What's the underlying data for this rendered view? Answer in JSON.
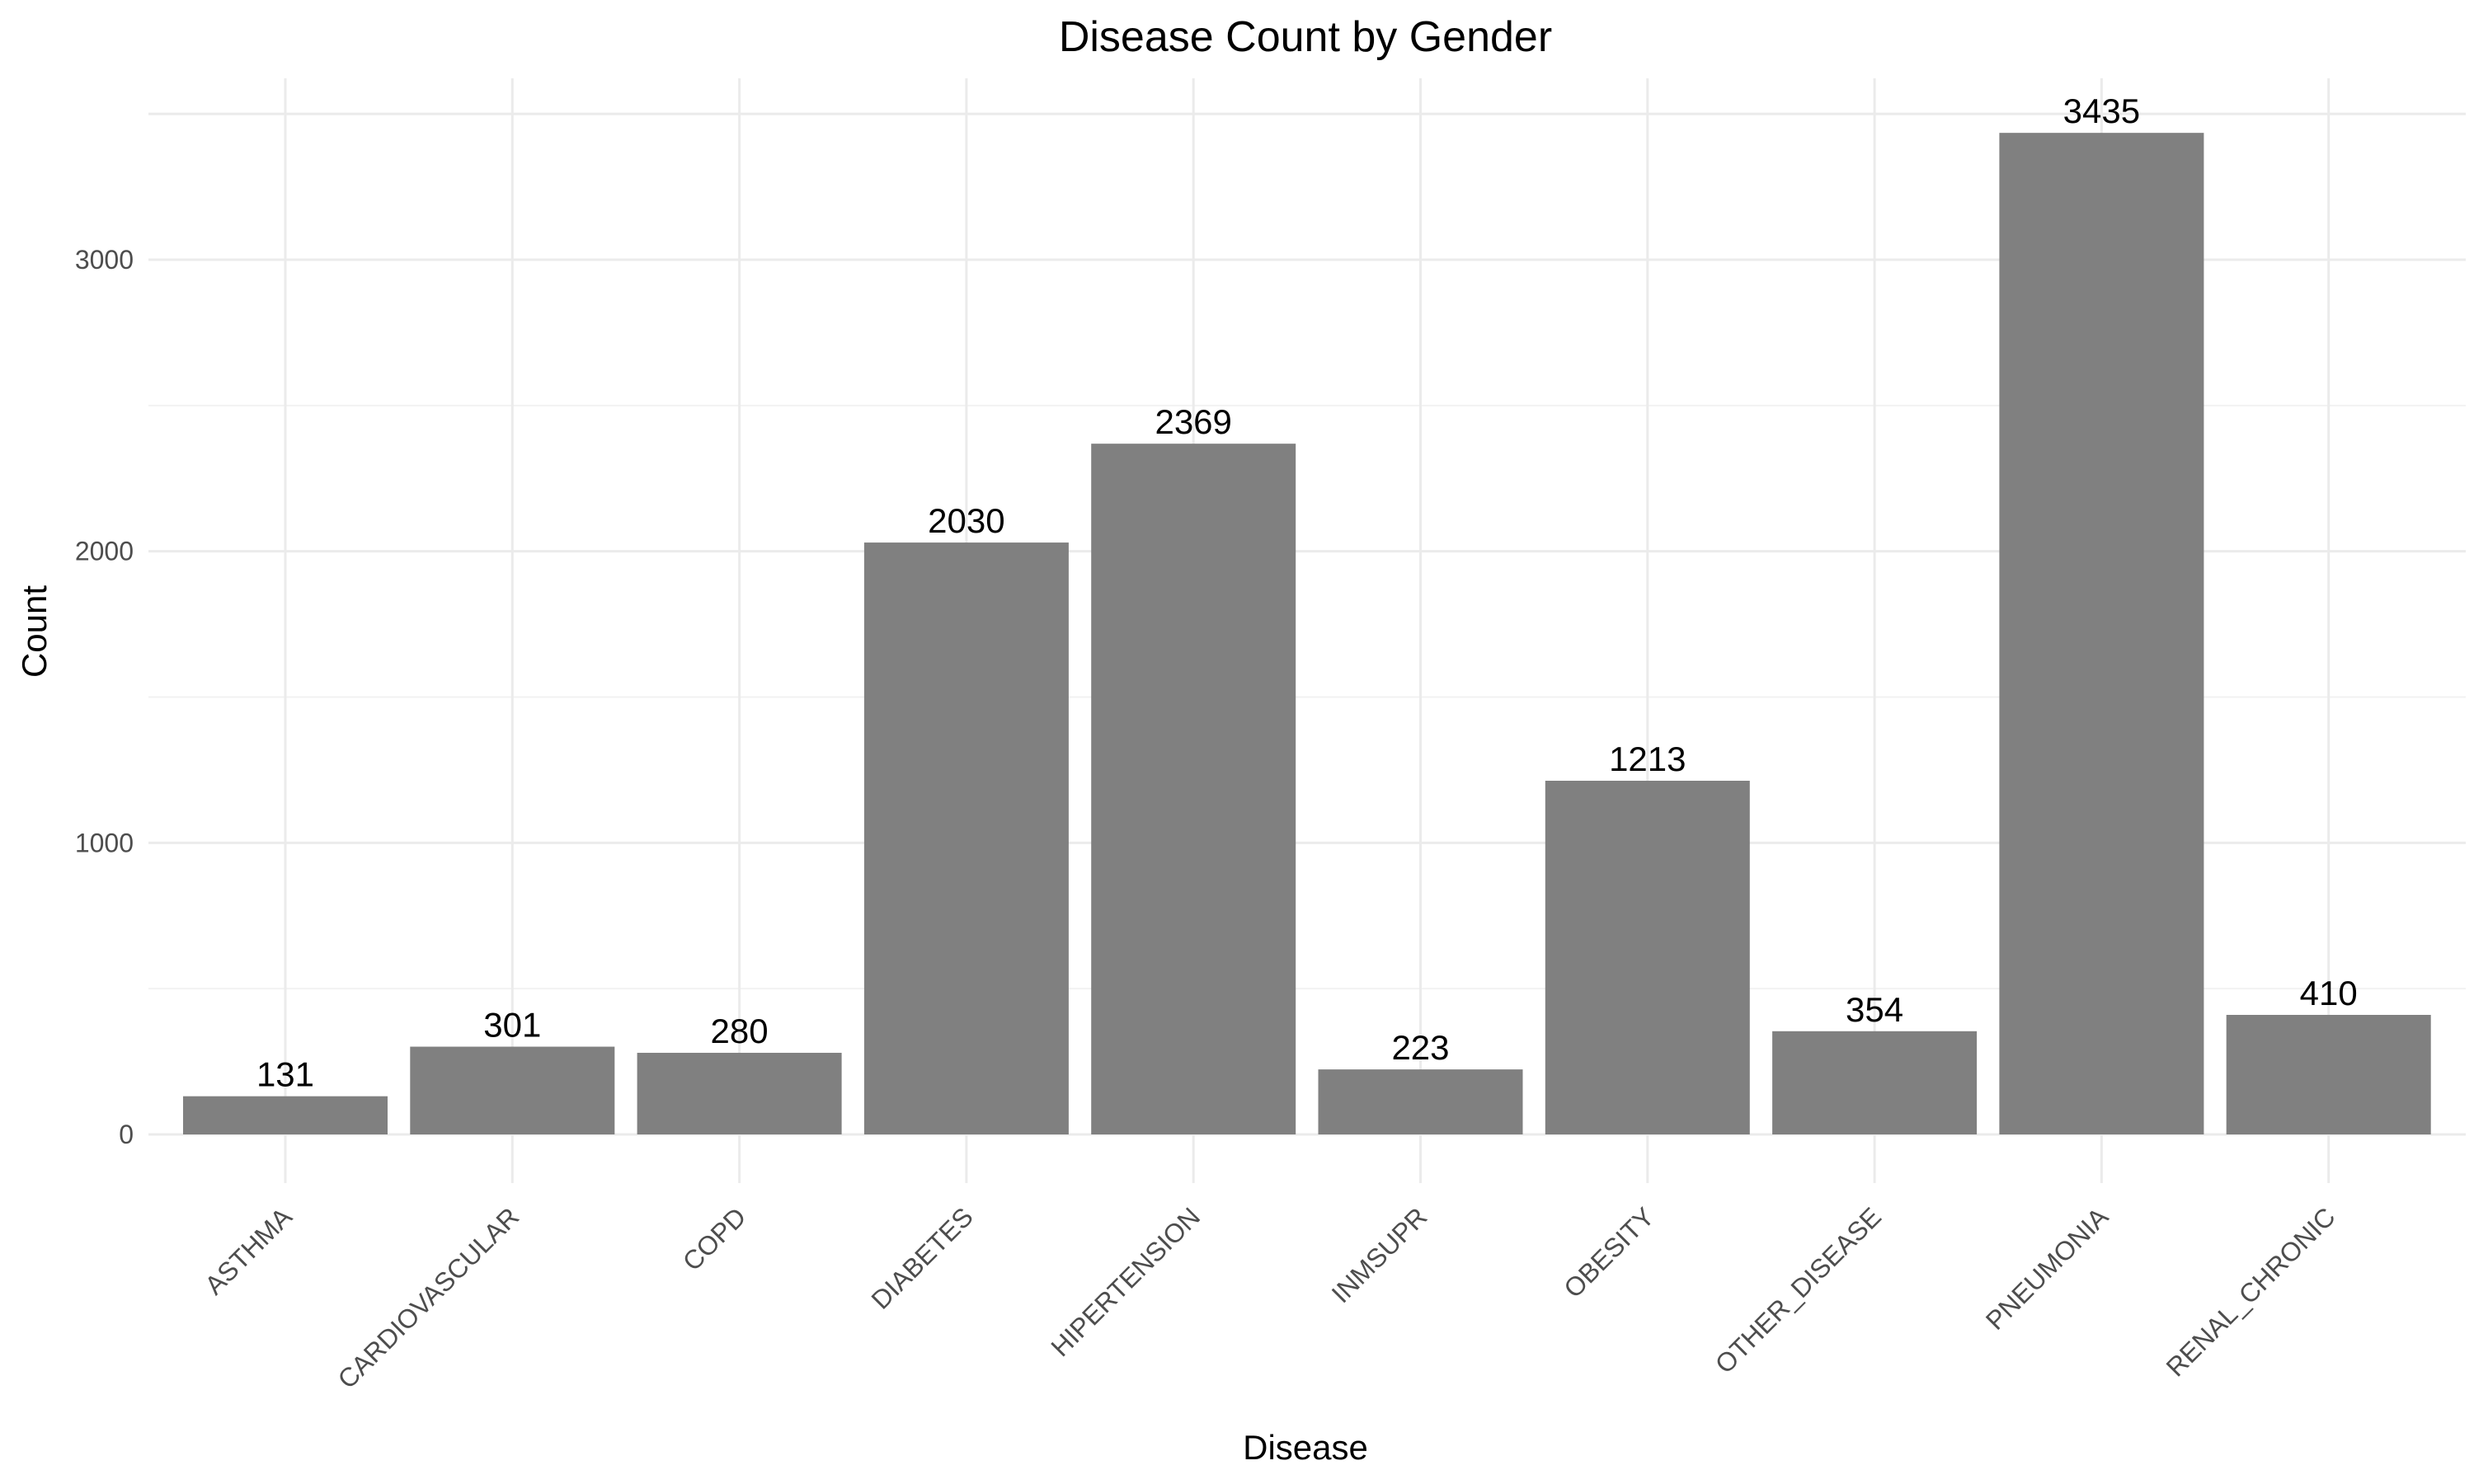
{
  "chart_data": {
    "type": "bar",
    "title": "Disease Count by Gender",
    "xlabel": "Disease",
    "ylabel": "Count",
    "categories": [
      "ASTHMA",
      "CARDIOVASCULAR",
      "COPD",
      "DIABETES",
      "HIPERTENSION",
      "INMSUPR",
      "OBESITY",
      "OTHER_DISEASE",
      "PNEUMONIA",
      "RENAL_CHRONIC"
    ],
    "values": [
      131,
      301,
      280,
      2030,
      2369,
      223,
      1213,
      354,
      3435,
      410
    ],
    "yticks": [
      0,
      1000,
      2000,
      3000
    ],
    "ylim": [
      0,
      3500
    ],
    "grid": true,
    "legend": "none",
    "bar_color": "#808080"
  }
}
